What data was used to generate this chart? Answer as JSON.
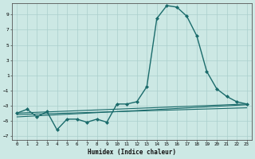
{
  "xlabel": "Humidex (Indice chaleur)",
  "ylabel": "",
  "background_color": "#cce8e4",
  "grid_color": "#aacfcc",
  "line_color": "#1a6b6b",
  "xlim": [
    -0.5,
    23.5
  ],
  "ylim": [
    -7.5,
    10.5
  ],
  "yticks": [
    -7,
    -5,
    -3,
    -1,
    1,
    3,
    5,
    7,
    9
  ],
  "xticks": [
    0,
    1,
    2,
    3,
    4,
    5,
    6,
    7,
    8,
    9,
    10,
    11,
    12,
    13,
    14,
    15,
    16,
    17,
    18,
    19,
    20,
    21,
    22,
    23
  ],
  "series": [
    {
      "x": [
        0,
        1,
        2,
        3,
        4,
        5,
        6,
        7,
        8,
        9,
        10,
        11,
        12,
        13,
        14,
        15,
        16,
        17,
        18,
        19,
        20,
        21,
        22,
        23
      ],
      "y": [
        -4.0,
        -3.5,
        -4.5,
        -3.8,
        -6.2,
        -4.8,
        -4.8,
        -5.2,
        -4.8,
        -5.2,
        -2.8,
        -2.8,
        -2.5,
        -0.5,
        8.5,
        10.2,
        10.0,
        8.8,
        6.2,
        1.5,
        -0.8,
        -1.8,
        -2.5,
        -2.8
      ],
      "marker": "D",
      "markersize": 2.0,
      "linewidth": 1.0
    },
    {
      "x": [
        0,
        23
      ],
      "y": [
        -4.0,
        -2.8
      ],
      "marker": null,
      "markersize": 0,
      "linewidth": 0.8
    },
    {
      "x": [
        0,
        23
      ],
      "y": [
        -4.2,
        -3.3
      ],
      "marker": null,
      "markersize": 0,
      "linewidth": 0.8
    },
    {
      "x": [
        0,
        23
      ],
      "y": [
        -4.5,
        -2.9
      ],
      "marker": null,
      "markersize": 0,
      "linewidth": 0.8
    }
  ]
}
